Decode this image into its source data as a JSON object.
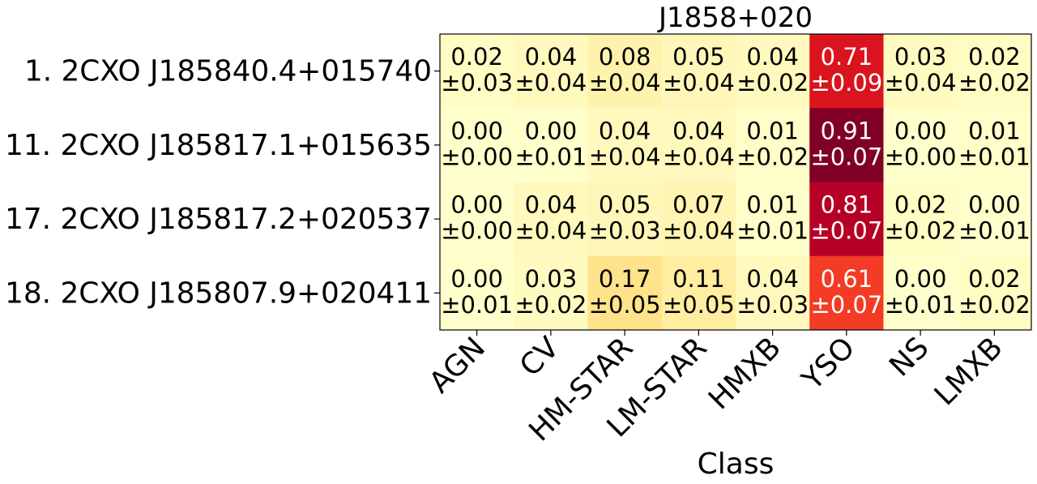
{
  "chart_data": {
    "type": "heatmap",
    "title": "J1858+020",
    "xlabel": "Class",
    "ylabel": "",
    "columns": [
      "AGN",
      "CV",
      "HM-STAR",
      "LM-STAR",
      "HMXB",
      "YSO",
      "NS",
      "LMXB"
    ],
    "rows": [
      "1. 2CXO J185840.4+015740",
      "11. 2CXO J185817.1+015635",
      "17. 2CXO J185817.2+020537",
      "18. 2CXO J185807.9+020411"
    ],
    "values": [
      [
        0.02,
        0.04,
        0.08,
        0.05,
        0.04,
        0.71,
        0.03,
        0.02
      ],
      [
        0.0,
        0.0,
        0.04,
        0.04,
        0.01,
        0.91,
        0.0,
        0.01
      ],
      [
        0.0,
        0.04,
        0.05,
        0.07,
        0.01,
        0.81,
        0.02,
        0.0
      ],
      [
        0.0,
        0.03,
        0.17,
        0.11,
        0.04,
        0.61,
        0.0,
        0.02
      ]
    ],
    "errors": [
      [
        0.03,
        0.04,
        0.04,
        0.04,
        0.02,
        0.09,
        0.04,
        0.02
      ],
      [
        0.0,
        0.01,
        0.04,
        0.04,
        0.02,
        0.07,
        0.0,
        0.01
      ],
      [
        0.0,
        0.04,
        0.03,
        0.04,
        0.01,
        0.07,
        0.02,
        0.01
      ],
      [
        0.01,
        0.02,
        0.05,
        0.05,
        0.03,
        0.07,
        0.01,
        0.02
      ]
    ],
    "value_labels": [
      [
        "0.02",
        "0.04",
        "0.08",
        "0.05",
        "0.04",
        "0.71",
        "0.03",
        "0.02"
      ],
      [
        "0.00",
        "0.00",
        "0.04",
        "0.04",
        "0.01",
        "0.91",
        "0.00",
        "0.01"
      ],
      [
        "0.00",
        "0.04",
        "0.05",
        "0.07",
        "0.01",
        "0.81",
        "0.02",
        "0.00"
      ],
      [
        "0.00",
        "0.03",
        "0.17",
        "0.11",
        "0.04",
        "0.61",
        "0.00",
        "0.02"
      ]
    ],
    "error_labels": [
      [
        "±0.03",
        "±0.04",
        "±0.04",
        "±0.04",
        "±0.02",
        "±0.09",
        "±0.04",
        "±0.02"
      ],
      [
        "±0.00",
        "±0.01",
        "±0.04",
        "±0.04",
        "±0.02",
        "±0.07",
        "±0.00",
        "±0.01"
      ],
      [
        "±0.00",
        "±0.04",
        "±0.03",
        "±0.04",
        "±0.01",
        "±0.07",
        "±0.02",
        "±0.01"
      ],
      [
        "±0.01",
        "±0.02",
        "±0.05",
        "±0.05",
        "±0.03",
        "±0.07",
        "±0.01",
        "±0.02"
      ]
    ],
    "colormap": "YlOrRd",
    "vmin": 0,
    "vmax": 0.91,
    "colorbar": false,
    "grid": false
  }
}
